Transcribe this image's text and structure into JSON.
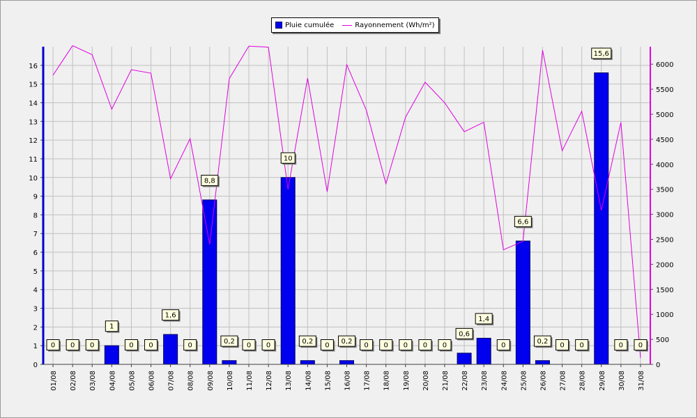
{
  "chart_data": {
    "type": "bar",
    "categories": [
      "01/08",
      "02/08",
      "03/08",
      "04/08",
      "05/08",
      "06/08",
      "07/08",
      "08/08",
      "09/08",
      "10/08",
      "11/08",
      "12/08",
      "13/08",
      "14/08",
      "15/08",
      "16/08",
      "17/08",
      "18/08",
      "19/08",
      "20/08",
      "21/08",
      "22/08",
      "23/08",
      "24/08",
      "25/08",
      "26/08",
      "27/08",
      "28/08",
      "29/08",
      "30/08",
      "31/08"
    ],
    "series": [
      {
        "name": "Pluie cumulée",
        "type": "bar",
        "axis": "left",
        "color": "#0000ee",
        "values": [
          0,
          0,
          0,
          1,
          0,
          0,
          1.6,
          0,
          8.8,
          0.2,
          0,
          0,
          10,
          0.2,
          0,
          0.2,
          0,
          0,
          0,
          0,
          0,
          0.6,
          1.4,
          0,
          6.6,
          0.2,
          0,
          0,
          15.6,
          0,
          0
        ],
        "labels": [
          "0",
          "0",
          "0",
          "1",
          "0",
          "0",
          "1,6",
          "0",
          "8,8",
          "0,2",
          "0",
          "0",
          "10",
          "0,2",
          "0",
          "0,2",
          "0",
          "0",
          "0",
          "0",
          "0",
          "0,6",
          "1,4",
          "0",
          "6,6",
          "0,2",
          "0",
          "0",
          "15,6",
          "0",
          "0"
        ]
      },
      {
        "name": "Rayonnement (Wh/m²)",
        "type": "line",
        "axis": "right",
        "color": "#e000e0",
        "values": [
          5780,
          6370,
          6190,
          5100,
          5890,
          5820,
          3710,
          4510,
          2400,
          5710,
          6360,
          6340,
          3500,
          5720,
          3450,
          5990,
          5080,
          3610,
          4940,
          5640,
          5230,
          4650,
          4840,
          2290,
          2460,
          6280,
          4270,
          5060,
          3080,
          4840,
          130
        ]
      }
    ],
    "yleft": {
      "ylim": [
        0,
        17
      ],
      "ticks": [
        "0",
        "1",
        "2",
        "3",
        "4",
        "5",
        "6",
        "7",
        "8",
        "9",
        "10",
        "11",
        "12",
        "13",
        "14",
        "15",
        "16"
      ]
    },
    "yright": {
      "ylim": [
        0,
        6350
      ],
      "ticks": [
        "0",
        "500",
        "1000",
        "1500",
        "2000",
        "2500",
        "3000",
        "3500",
        "4000",
        "4500",
        "5000",
        "5500",
        "6000"
      ]
    },
    "grid": true,
    "legend": "top-center"
  }
}
